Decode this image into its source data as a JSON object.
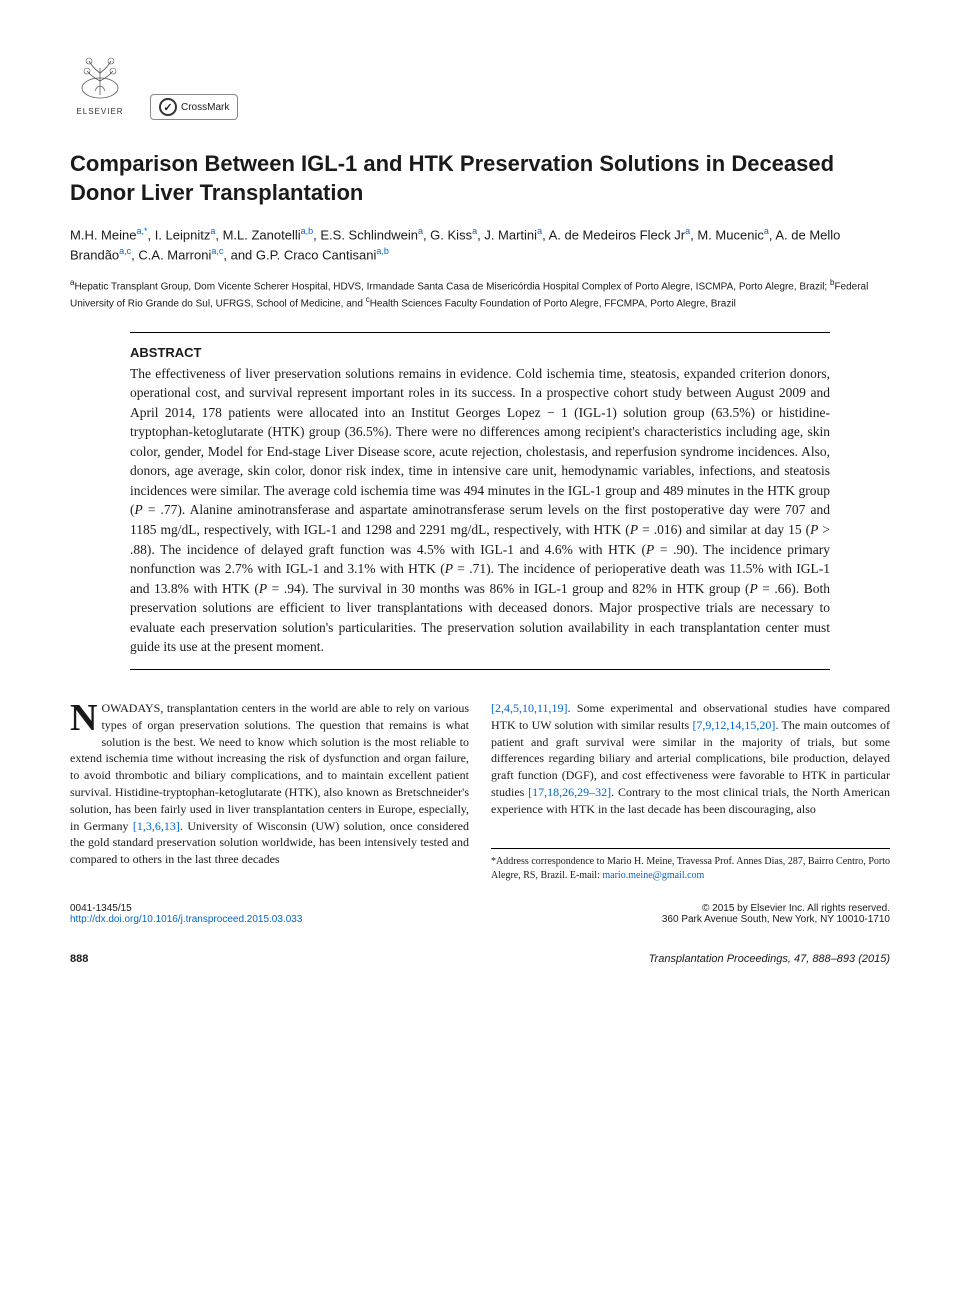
{
  "logos": {
    "elsevier": "ELSEVIER",
    "crossmark": "CrossMark"
  },
  "title": "Comparison Between IGL-1 and HTK Preservation Solutions in Deceased Donor Liver Transplantation",
  "authors_html": "M.H. Meine<sup>a,*</sup>, I. Leipnitz<sup>a</sup>, M.L. Zanotelli<sup>a,b</sup>, E.S. Schlindwein<sup>a</sup>, G. Kiss<sup>a</sup>, J. Martini<sup>a</sup>, A. de Medeiros Fleck Jr<sup>a</sup>, M. Mucenic<sup>a</sup>, A. de Mello Brandão<sup>a,c</sup>, C.A. Marroni<sup>a,c</sup>, and G.P. Craco Cantisani<sup>a,b</sup>",
  "affiliations_html": "<sup>a</sup>Hepatic Transplant Group, Dom Vicente Scherer Hospital, HDVS, Irmandade Santa Casa de Misericórdia Hospital Complex of Porto Alegre, ISCMPA, Porto Alegre, Brazil; <sup>b</sup>Federal University of Rio Grande do Sul, UFRGS, School of Medicine, and <sup>c</sup>Health Sciences Faculty Foundation of Porto Alegre, FFCMPA, Porto Alegre, Brazil",
  "abstract": {
    "label": "ABSTRACT",
    "text": "The effectiveness of liver preservation solutions remains in evidence. Cold ischemia time, steatosis, expanded criterion donors, operational cost, and survival represent important roles in its success. In a prospective cohort study between August 2009 and April 2014, 178 patients were allocated into an Institut Georges Lopez − 1 (IGL-1) solution group (63.5%) or histidine-tryptophan-ketoglutarate (HTK) group (36.5%). There were no differences among recipient's characteristics including age, skin color, gender, Model for End-stage Liver Disease score, acute rejection, cholestasis, and reperfusion syndrome incidences. Also, donors, age average, skin color, donor risk index, time in intensive care unit, hemodynamic variables, infections, and steatosis incidences were similar. The average cold ischemia time was 494 minutes in the IGL-1 group and 489 minutes in the HTK group (P = .77). Alanine aminotransferase and aspartate aminotransferase serum levels on the first postoperative day were 707 and 1185 mg/dL, respectively, with IGL-1 and 1298 and 2291 mg/dL, respectively, with HTK (P = .016) and similar at day 15 (P > .88). The incidence of delayed graft function was 4.5% with IGL-1 and 4.6% with HTK (P = .90). The incidence primary nonfunction was 2.7% with IGL-1 and 3.1% with HTK (P = .71). The incidence of perioperative death was 11.5% with IGL-1 and 13.8% with HTK (P = .94). The survival in 30 months was 86% in IGL-1 group and 82% in HTK group (P = .66). Both preservation solutions are efficient to liver transplantations with deceased donors. Major prospective trials are necessary to evaluate each preservation solution's particularities. The preservation solution availability in each transplantation center must guide its use at the present moment."
  },
  "body": {
    "col1_dropcap": "N",
    "col1_text": "OWADAYS, transplantation centers in the world are able to rely on various types of organ preservation solutions. The question that remains is what solution is the best. We need to know which solution is the most reliable to extend ischemia time without increasing the risk of dysfunction and organ failure, to avoid thrombotic and biliary complications, and to maintain excellent patient survival. Histidine-tryptophan-ketoglutarate (HTK), also known as Bretschneider's solution, has been fairly used in liver transplantation centers in Europe, especially, in Germany [1,3,6,13]. University of Wisconsin (UW) solution, once considered the gold standard preservation solution worldwide, has been intensively tested and compared to others in the last three decades",
    "col1_refs": "[1,3,6,13]",
    "col2_text": "[2,4,5,10,11,19]. Some experimental and observational studies have compared HTK to UW solution with similar results [7,9,12,14,15,20]. The main outcomes of patient and graft survival were similar in the majority of trials, but some differences regarding biliary and arterial complications, bile production, delayed graft function (DGF), and cost effectiveness were favorable to HTK in particular studies [17,18,26,29–32]. Contrary to the most clinical trials, the North American experience with HTK in the last decade has been discouraging, also",
    "col2_refs1": "[2,4,5,10,11,19]",
    "col2_refs2": "[7,9,12,14,15,20]",
    "col2_refs3": "[17,18,26,29–32]"
  },
  "correspondence": {
    "label": "*Address correspondence to Mario H. Meine, Travessa Prof. Annes Dias, 287, Bairro Centro, Porto Alegre, RS, Brazil. E-mail:",
    "email": "mario.meine@gmail.com"
  },
  "footer": {
    "issn": "0041-1345/15",
    "doi": "http://dx.doi.org/10.1016/j.transproceed.2015.03.033",
    "copyright": "© 2015 by Elsevier Inc. All rights reserved.",
    "address": "360 Park Avenue South, New York, NY 10010-1710",
    "page": "888",
    "journal": "Transplantation Proceedings, 47, 888–893 (2015)"
  },
  "colors": {
    "link": "#0066cc",
    "text": "#1a1a1a",
    "background": "#ffffff"
  },
  "fonts": {
    "body": "Georgia, Times New Roman, serif",
    "heading": "Arial, Helvetica, sans-serif",
    "title_size_pt": 16,
    "abstract_size_pt": 10,
    "body_size_pt": 9
  }
}
